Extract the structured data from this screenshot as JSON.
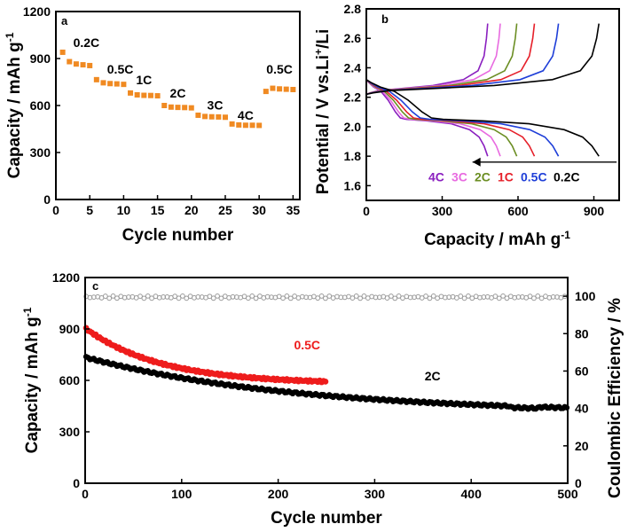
{
  "chart_data": [
    {
      "id": "a",
      "panel_label": "a",
      "type": "scatter",
      "xlabel": "Cycle number",
      "ylabel": "Capacity / mAh g",
      "ylabel_sup": "-1",
      "xlim": [
        0,
        36
      ],
      "ylim": [
        0,
        1200
      ],
      "xticks": [
        0,
        5,
        10,
        15,
        20,
        25,
        30,
        35
      ],
      "yticks": [
        0,
        300,
        600,
        900,
        1200
      ],
      "marker_color": "#f08a22",
      "series": [
        {
          "name": "0.2C",
          "x": [
            1,
            2,
            3,
            4,
            5
          ],
          "y": [
            940,
            880,
            865,
            860,
            855
          ]
        },
        {
          "name": "0.5C",
          "x": [
            6,
            7,
            8,
            9,
            10
          ],
          "y": [
            765,
            745,
            740,
            738,
            735
          ]
        },
        {
          "name": "1C",
          "x": [
            11,
            12,
            13,
            14,
            15
          ],
          "y": [
            680,
            668,
            665,
            664,
            662
          ]
        },
        {
          "name": "2C",
          "x": [
            16,
            17,
            18,
            19,
            20
          ],
          "y": [
            600,
            590,
            588,
            587,
            585
          ]
        },
        {
          "name": "3C",
          "x": [
            21,
            22,
            23,
            24,
            25
          ],
          "y": [
            538,
            530,
            528,
            527,
            525
          ]
        },
        {
          "name": "4C",
          "x": [
            26,
            27,
            28,
            29,
            30
          ],
          "y": [
            482,
            476,
            474,
            474,
            473
          ]
        },
        {
          "name": "0.5C",
          "x": [
            31,
            32,
            33,
            34,
            35
          ],
          "y": [
            690,
            710,
            706,
            704,
            702
          ]
        }
      ],
      "annotations": [
        {
          "text": "0.2C",
          "x": 4.5,
          "y": 975
        },
        {
          "text": "0.5C",
          "x": 9.5,
          "y": 805
        },
        {
          "text": "1C",
          "x": 13,
          "y": 735
        },
        {
          "text": "2C",
          "x": 18,
          "y": 650
        },
        {
          "text": "3C",
          "x": 23.5,
          "y": 575
        },
        {
          "text": "4C",
          "x": 28,
          "y": 510
        },
        {
          "text": "0.5C",
          "x": 33,
          "y": 805
        }
      ]
    },
    {
      "id": "b",
      "panel_label": "b",
      "type": "line",
      "xlabel": "Capacity / mAh g",
      "xlabel_sup": "-1",
      "ylabel_parts": [
        "Potential / V vs.Li",
        "+",
        "/Li"
      ],
      "xlim": [
        0,
        1000
      ],
      "ylim": [
        1.5,
        2.8
      ],
      "xticks": [
        0,
        300,
        600,
        900
      ],
      "yticks": [
        1.6,
        1.8,
        2.0,
        2.2,
        2.4,
        2.6,
        2.8
      ],
      "series": [
        {
          "name": "4C",
          "color": "#8a1fbf",
          "cap": 480
        },
        {
          "name": "3C",
          "color": "#e86ae0",
          "cap": 530
        },
        {
          "name": "2C",
          "color": "#6b8e23",
          "cap": 595
        },
        {
          "name": "1C",
          "color": "#e6202a",
          "cap": 665
        },
        {
          "name": "0.5C",
          "color": "#1f3fd8",
          "cap": 760
        },
        {
          "name": "0.2C",
          "color": "#000000",
          "cap": 920
        }
      ],
      "legend_labels": [
        "4C",
        "3C",
        "2C",
        "1C",
        "0.5C",
        "0.2C"
      ]
    },
    {
      "id": "c",
      "panel_label": "c",
      "type": "scatter",
      "xlabel": "Cycle number",
      "ylabel": "Capacity / mAh g",
      "ylabel_sup": "-1",
      "y2label": "Coulombic Efficiency / %",
      "xlim": [
        0,
        500
      ],
      "ylim": [
        0,
        1200
      ],
      "y2lim": [
        0,
        110
      ],
      "xticks": [
        0,
        100,
        200,
        300,
        400,
        500
      ],
      "yticks": [
        0,
        300,
        600,
        900,
        1200
      ],
      "y2ticks": [
        0,
        20,
        40,
        60,
        80,
        100
      ],
      "series": [
        {
          "name": "0.5C",
          "color": "#ee1c1c",
          "cycles": 250,
          "start": 905,
          "end": 580
        },
        {
          "name": "2C",
          "color": "#000000",
          "cycles": 500,
          "start": 735,
          "end": 440
        },
        {
          "name": "Coulombic Efficiency",
          "axis": "right",
          "color": "#9a9a9a",
          "value": 99.5
        }
      ],
      "annotations": [
        {
          "text": "0.5C",
          "x": 230,
          "y": 780,
          "color": "#ee1c1c"
        },
        {
          "text": "2C",
          "x": 360,
          "y": 600,
          "color": "#000000"
        }
      ]
    }
  ]
}
